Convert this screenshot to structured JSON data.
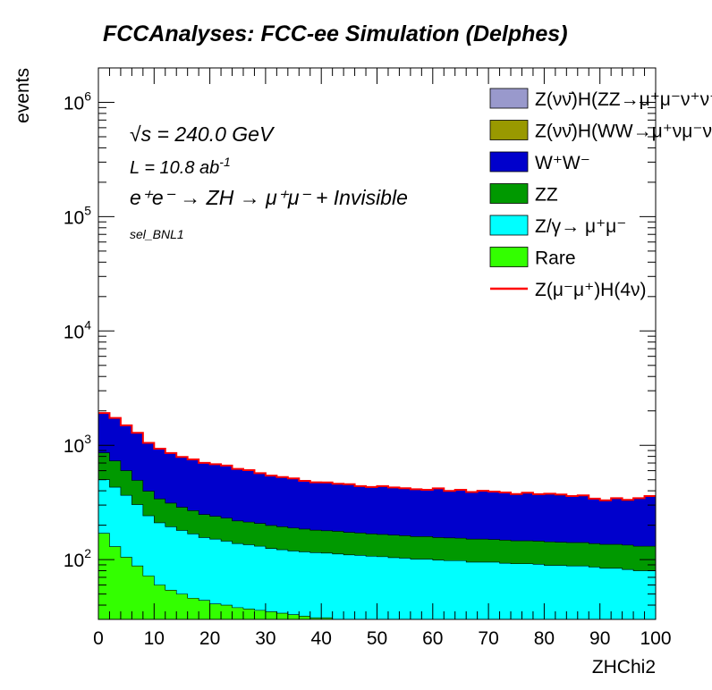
{
  "chart_data": {
    "type": "area",
    "stacked": true,
    "title": "FCCAnalyses: FCC-ee Simulation (Delphes)",
    "xlabel": "ZHChi2",
    "ylabel": "events",
    "xlim": [
      0,
      100
    ],
    "ylim": [
      30,
      2000000
    ],
    "log_y": true,
    "x_ticks": [
      "0",
      "10",
      "20",
      "30",
      "40",
      "50",
      "60",
      "70",
      "80",
      "90",
      "100"
    ],
    "y_ticks": [
      {
        "base": "10",
        "exp": "2"
      },
      {
        "base": "10",
        "exp": "3"
      },
      {
        "base": "10",
        "exp": "4"
      },
      {
        "base": "10",
        "exp": "5"
      },
      {
        "base": "10",
        "exp": "6"
      }
    ],
    "annotations": {
      "energy_sqrt": "√s",
      "energy_value": " = 240.0 GeV",
      "lumi": "L = 10.8 ab",
      "lumi_exp": "-1",
      "process": "e⁺e⁻ → ZH → μ⁺μ⁻ + Invisible",
      "selection": "sel_BNL1"
    },
    "legend_placement": "top-right",
    "x": [
      1,
      3,
      5,
      7,
      9,
      11,
      13,
      15,
      17,
      19,
      21,
      23,
      25,
      27,
      29,
      31,
      33,
      35,
      37,
      39,
      41,
      43,
      45,
      47,
      49,
      51,
      53,
      55,
      57,
      59,
      61,
      63,
      65,
      67,
      69,
      71,
      73,
      75,
      77,
      79,
      81,
      83,
      85,
      87,
      89,
      91,
      93,
      95,
      97,
      99
    ],
    "series": [
      {
        "name": "Z(νν̄)H(ZZ→μ⁺μ⁻ν⁺ν⁻)",
        "color": "#9999cc",
        "values": [
          2,
          2,
          2,
          1,
          1,
          1,
          1,
          1,
          1,
          1,
          1,
          1,
          1,
          1,
          1,
          1,
          1,
          1,
          1,
          1,
          1,
          1,
          1,
          1,
          1,
          1,
          1,
          1,
          1,
          1,
          1,
          1,
          1,
          1,
          1,
          1,
          1,
          1,
          1,
          1,
          1,
          1,
          1,
          1,
          1,
          1,
          1,
          1,
          1,
          1
        ]
      },
      {
        "name": "Z(νν̄)H(WW→μ⁺νμ⁻ν)",
        "color": "#999900",
        "values": [
          3,
          3,
          2,
          2,
          2,
          2,
          2,
          2,
          2,
          2,
          2,
          2,
          2,
          2,
          2,
          2,
          2,
          2,
          2,
          2,
          2,
          2,
          2,
          2,
          2,
          2,
          2,
          2,
          2,
          2,
          2,
          2,
          2,
          2,
          2,
          2,
          2,
          2,
          2,
          2,
          2,
          2,
          2,
          2,
          2,
          2,
          2,
          2,
          2,
          2
        ]
      },
      {
        "name": "W⁺W⁻",
        "color": "#0000cc",
        "values": [
          1050,
          1000,
          890,
          790,
          650,
          590,
          540,
          500,
          480,
          450,
          440,
          430,
          400,
          390,
          360,
          340,
          330,
          320,
          300,
          290,
          290,
          280,
          280,
          265,
          260,
          270,
          260,
          255,
          250,
          245,
          260,
          240,
          250,
          235,
          245,
          240,
          235,
          225,
          235,
          225,
          230,
          225,
          215,
          220,
          200,
          190,
          205,
          195,
          210,
          225
        ]
      },
      {
        "name": "ZZ",
        "color": "#009900",
        "values": [
          360,
          300,
          235,
          190,
          155,
          130,
          118,
          107,
          100,
          92,
          88,
          86,
          80,
          78,
          76,
          74,
          72,
          70,
          68,
          66,
          65,
          65,
          63,
          62,
          61,
          60,
          60,
          59,
          58,
          58,
          57,
          57,
          56,
          56,
          56,
          55,
          55,
          54,
          54,
          54,
          54,
          53,
          53,
          53,
          52,
          52,
          52,
          52,
          51,
          51
        ]
      },
      {
        "name": "Z/γ→ μ⁺μ⁻",
        "color": "#00ffff",
        "values": [
          330,
          300,
          260,
          215,
          170,
          150,
          140,
          130,
          122,
          112,
          110,
          105,
          100,
          98,
          95,
          90,
          88,
          86,
          85,
          84,
          83,
          82,
          80,
          80,
          78,
          78,
          76,
          75,
          74,
          74,
          73,
          72,
          72,
          70,
          70,
          70,
          69,
          68,
          68,
          67,
          66,
          66,
          65,
          65,
          64,
          62,
          62,
          60,
          58,
          58
        ]
      },
      {
        "name": "Rare",
        "color": "#33ff00",
        "values": [
          170,
          130,
          105,
          88,
          72,
          60,
          54,
          50,
          46,
          44,
          41,
          40,
          38,
          37,
          36,
          35,
          34,
          33,
          32,
          31,
          31,
          30,
          30,
          29,
          29,
          28,
          28,
          28,
          27,
          27,
          26,
          26,
          26,
          25,
          25,
          25,
          24,
          24,
          24,
          24,
          23,
          23,
          23,
          23,
          22,
          22,
          22,
          22,
          22,
          22
        ]
      }
    ],
    "signal": {
      "name": "Z(μ⁻μ⁺)H(4ν)",
      "color": "#ff0000",
      "values": [
        1,
        1,
        1,
        1,
        1,
        1,
        1,
        1,
        1,
        1,
        1,
        1,
        1,
        1,
        1,
        1,
        1,
        1,
        1,
        1,
        1,
        1,
        1,
        1,
        1,
        1,
        1,
        1,
        1,
        1,
        1,
        1,
        1,
        1,
        1,
        1,
        1,
        1,
        1,
        1,
        1,
        1,
        1,
        1,
        1,
        1,
        1,
        1,
        1,
        1
      ]
    }
  }
}
